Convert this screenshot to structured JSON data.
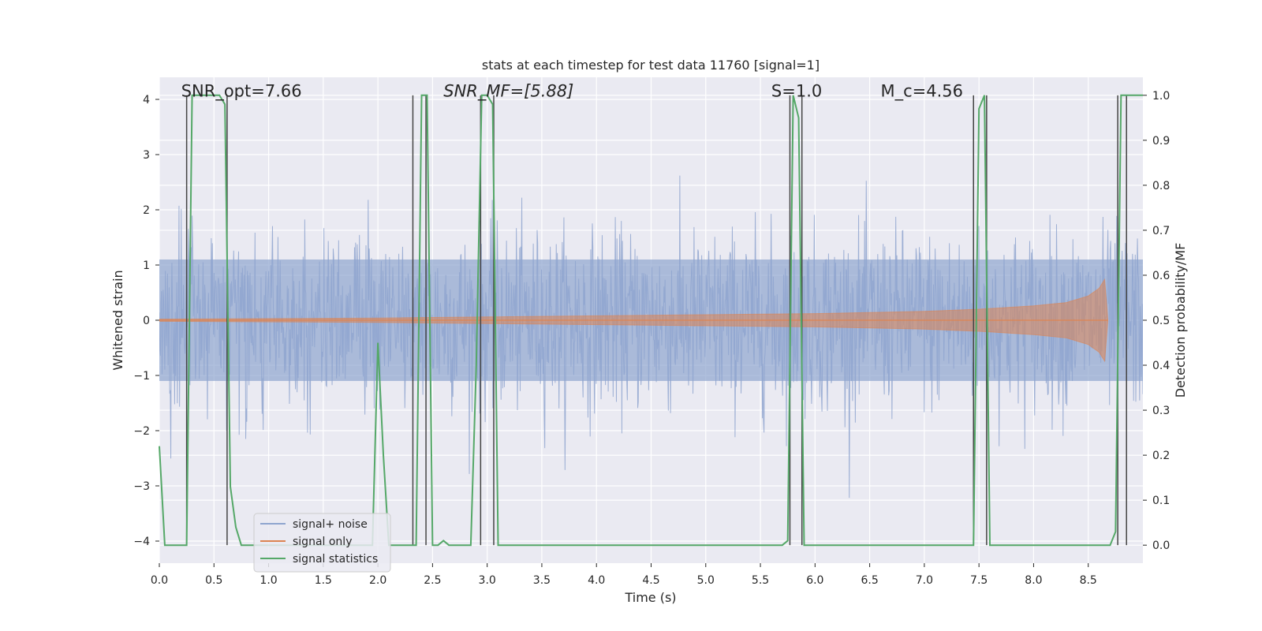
{
  "chart_data": {
    "type": "line",
    "title": "stats at each timestep for test data 11760 [signal=1]",
    "xlabel": "Time (s)",
    "ylabel": "Whitened strain",
    "y2label": "Detection probability/MF",
    "xlim": [
      0.0,
      9.0
    ],
    "ylim": [
      -4.4,
      4.4
    ],
    "y2lim": [
      -0.04,
      1.04
    ],
    "xticks": [
      "0.0",
      "0.5",
      "1.0",
      "1.5",
      "2.0",
      "2.5",
      "3.0",
      "3.5",
      "4.0",
      "4.5",
      "5.0",
      "5.5",
      "6.0",
      "6.5",
      "7.0",
      "7.5",
      "8.0",
      "8.5"
    ],
    "yticks": [
      "−4",
      "−3",
      "−2",
      "−1",
      "0",
      "1",
      "2",
      "3",
      "4"
    ],
    "y2ticks": [
      "0.0",
      "0.1",
      "0.2",
      "0.3",
      "0.4",
      "0.5",
      "0.6",
      "0.7",
      "0.8",
      "0.9",
      "1.0"
    ],
    "annotations": {
      "snr_opt": {
        "label": "SNR_opt=7.66",
        "x": 0.2,
        "y": 4.05
      },
      "snr_mf": {
        "label": "SNR_MF=[5.88]",
        "x": 2.6,
        "y": 4.05
      },
      "s_value": {
        "label": "S=1.0",
        "x": 5.6,
        "y": 4.05
      },
      "mc_value": {
        "label": "M_c=4.56",
        "x": 6.6,
        "y": 4.05
      }
    },
    "legend": [
      "signal+ noise",
      "signal only",
      "signal statistics"
    ],
    "legend_position": "lower-left",
    "series": [
      {
        "name": "signal statistics",
        "axis": "right",
        "x": [
          0.0,
          0.05,
          0.1,
          0.25,
          0.3,
          0.55,
          0.6,
          0.65,
          0.7,
          0.75,
          1.95,
          2.0,
          2.05,
          2.1,
          2.15,
          2.2,
          2.25,
          2.3,
          2.35,
          2.4,
          2.45,
          2.5,
          2.55,
          2.6,
          2.65,
          2.7,
          2.85,
          2.9,
          2.95,
          3.0,
          3.05,
          3.1,
          3.15,
          3.2,
          5.7,
          5.75,
          5.8,
          5.85,
          5.9,
          7.45,
          7.5,
          7.55,
          7.6,
          7.65,
          8.7,
          8.75,
          8.8,
          8.85,
          9.0
        ],
        "values": [
          0.22,
          0.0,
          0.0,
          0.0,
          1.0,
          1.0,
          0.98,
          0.13,
          0.04,
          0.0,
          0.0,
          0.45,
          0.2,
          0.0,
          0.0,
          0.0,
          0.0,
          0.0,
          0.0,
          1.0,
          1.0,
          0.0,
          0.0,
          0.01,
          0.0,
          0.0,
          0.0,
          0.4,
          1.0,
          1.0,
          0.98,
          0.0,
          0.0,
          0.0,
          0.0,
          0.01,
          1.0,
          0.95,
          0.0,
          0.0,
          0.97,
          1.0,
          0.0,
          0.0,
          0.0,
          0.03,
          1.0,
          1.0,
          1.0
        ]
      },
      {
        "name": "signal only",
        "axis": "left",
        "x": [
          0.0,
          1.0,
          2.0,
          3.0,
          4.0,
          5.0,
          6.0,
          7.0,
          7.5,
          8.0,
          8.3,
          8.5,
          8.6,
          8.65,
          8.68
        ],
        "values": [
          0.02,
          0.03,
          0.04,
          0.06,
          0.08,
          0.1,
          0.12,
          0.16,
          0.2,
          0.26,
          0.32,
          0.44,
          0.58,
          0.74,
          0.0
        ]
      },
      {
        "name": "signal+ noise",
        "axis": "left",
        "envelope_sigma": 0.8,
        "peak_max": 3.65,
        "peak_min": -4.0,
        "samples": 1800,
        "x_range": [
          0.0,
          9.0
        ]
      }
    ],
    "vlines": [
      0.25,
      0.62,
      2.32,
      2.44,
      2.94,
      3.06,
      5.77,
      5.88,
      7.45,
      7.57,
      8.77,
      8.85
    ],
    "colors": {
      "background": "#eaeaf2",
      "grid": "#ffffff",
      "noise": "#8fa5cf",
      "signal": "#dd8452",
      "stats": "#55a868",
      "vline": "#444444"
    }
  }
}
